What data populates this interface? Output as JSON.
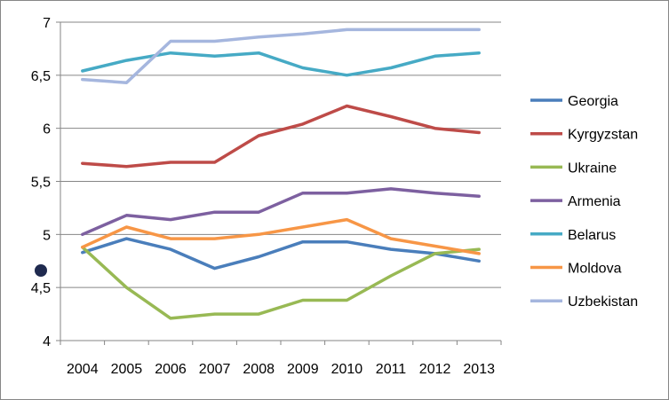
{
  "chart_data": {
    "type": "line",
    "title": "",
    "xlabel": "",
    "ylabel": "",
    "x": [
      "2004",
      "2005",
      "2006",
      "2007",
      "2008",
      "2009",
      "2010",
      "2011",
      "2012",
      "2013"
    ],
    "ylim": [
      4,
      7
    ],
    "yticks": [
      4,
      4.5,
      5,
      5.5,
      6,
      6.5,
      7
    ],
    "ytick_labels": [
      "4",
      "4,5",
      "5",
      "5,5",
      "6",
      "6,5",
      "7"
    ],
    "grid": "horizontal gridlines at each y tick",
    "legend_position": "right",
    "series": [
      {
        "name": "Georgia",
        "color": "#4a7ebb",
        "values": [
          4.83,
          4.96,
          4.86,
          4.68,
          4.79,
          4.93,
          4.93,
          4.86,
          4.82,
          4.75
        ]
      },
      {
        "name": "Kyrgyzstan",
        "color": "#be4b48",
        "values": [
          5.67,
          5.64,
          5.68,
          5.68,
          5.93,
          6.04,
          6.21,
          6.11,
          6.0,
          5.96
        ]
      },
      {
        "name": "Ukraine",
        "color": "#98b954",
        "values": [
          4.88,
          4.5,
          4.21,
          4.25,
          4.25,
          4.38,
          4.38,
          4.61,
          4.82,
          4.86
        ]
      },
      {
        "name": "Armenia",
        "color": "#7d60a0",
        "values": [
          5.0,
          5.18,
          5.14,
          5.21,
          5.21,
          5.39,
          5.39,
          5.43,
          5.39,
          5.36
        ]
      },
      {
        "name": "Belarus",
        "color": "#46aac5",
        "values": [
          6.54,
          6.64,
          6.71,
          6.68,
          6.71,
          6.57,
          6.5,
          6.57,
          6.68,
          6.71
        ]
      },
      {
        "name": "Moldova",
        "color": "#f79646",
        "values": [
          4.88,
          5.07,
          4.96,
          4.96,
          5.0,
          5.07,
          5.14,
          4.96,
          4.89,
          4.82
        ]
      },
      {
        "name": "Uzbekistan",
        "color": "#a5b6de",
        "values": [
          6.46,
          6.43,
          6.82,
          6.82,
          6.86,
          6.89,
          6.93,
          6.93,
          6.93,
          6.93
        ]
      }
    ],
    "axis_color": "#868686",
    "grid_color": "#868686",
    "marker_color": "#1f2a4f"
  }
}
